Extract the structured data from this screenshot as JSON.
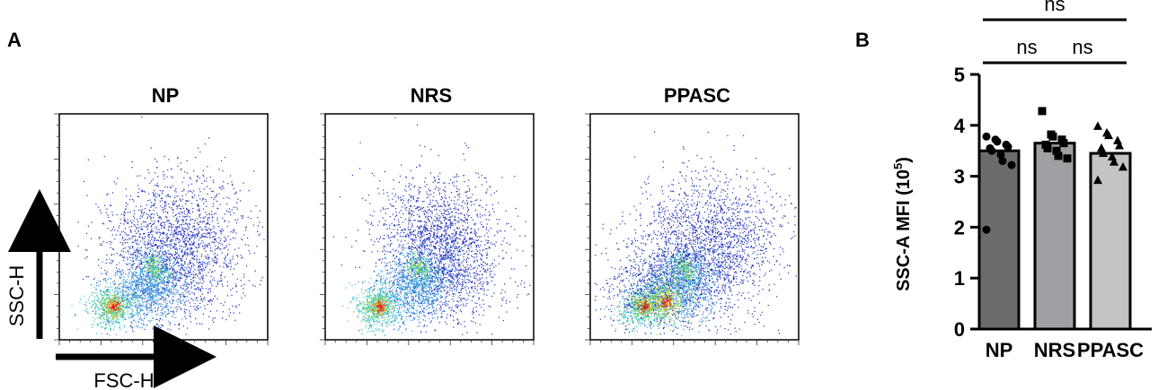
{
  "figure": {
    "panel_a_label": "A",
    "panel_b_label": "B"
  },
  "chart_data": [
    {
      "type": "scatter",
      "subtype": "flow-cytometry-density-plots",
      "panels": [
        {
          "title": "NP"
        },
        {
          "title": "NRS"
        },
        {
          "title": "PPASC"
        }
      ],
      "xlabel": "FSC-H",
      "ylabel": "SSC-H",
      "colormap": [
        "#1f2db8",
        "#2f8fe0",
        "#2ec7c0",
        "#7fd64a",
        "#f2e21e",
        "#f58a1c",
        "#e31a1c"
      ]
    },
    {
      "type": "bar",
      "categories": [
        "NP",
        "NRS",
        "PPASC"
      ],
      "values": [
        3.5,
        3.65,
        3.45
      ],
      "points": [
        [
          3.78,
          3.72,
          3.68,
          3.62,
          3.58,
          3.55,
          3.5,
          3.42,
          3.3,
          3.22,
          1.95
        ],
        [
          4.28,
          3.82,
          3.78,
          3.72,
          3.65,
          3.62,
          3.55,
          3.5,
          3.4,
          3.35
        ],
        [
          3.98,
          3.85,
          3.8,
          3.7,
          3.6,
          3.55,
          3.45,
          3.38,
          3.28,
          3.18,
          2.92
        ]
      ],
      "markers": [
        "circle",
        "square",
        "triangle"
      ],
      "colors": [
        "#6b6b6b",
        "#a0a0a4",
        "#c4c4c6"
      ],
      "ylabel": "SSC-A MFI (10",
      "ylabel_superscript": "5",
      "ylabel_close": ")",
      "ylim": [
        0,
        5
      ],
      "yticks": [
        "0",
        "1",
        "2",
        "3",
        "4",
        "5"
      ],
      "significance": [
        {
          "from": "NP",
          "to": "NRS",
          "label": "ns"
        },
        {
          "from": "NRS",
          "to": "PPASC",
          "label": "ns"
        },
        {
          "from": "NP",
          "to": "PPASC",
          "label": "ns"
        }
      ],
      "grid": false
    }
  ]
}
